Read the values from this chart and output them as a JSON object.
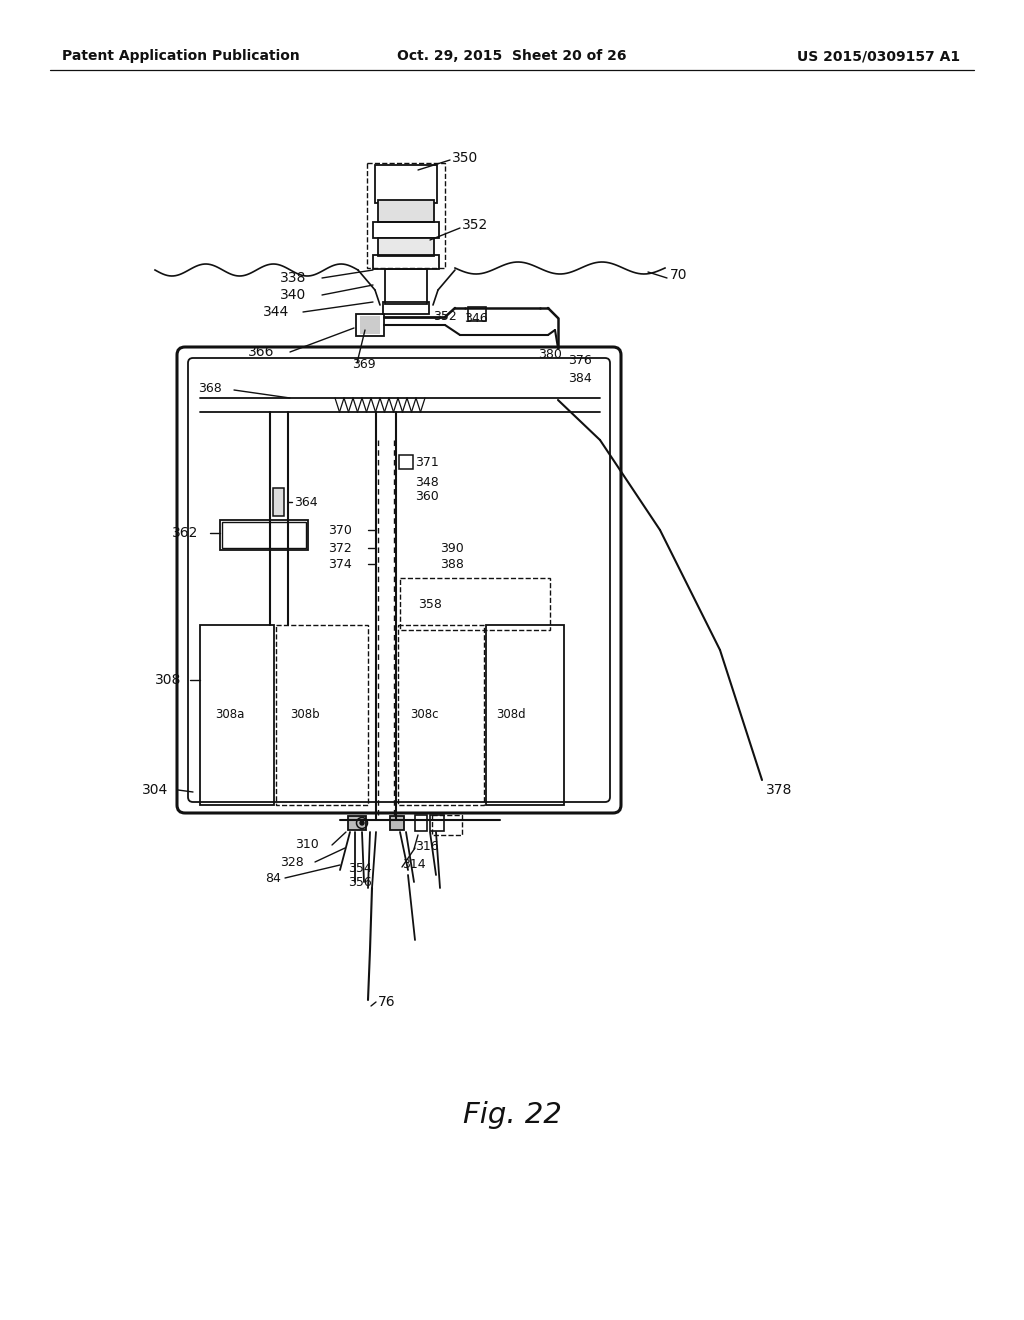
{
  "bg_color": "#ffffff",
  "header_left": "Patent Application Publication",
  "header_center": "Oct. 29, 2015  Sheet 20 of 26",
  "header_right": "US 2015/0309157 A1",
  "fig_label": "Fig. 22",
  "lc": "#111111",
  "tc": "#111111"
}
